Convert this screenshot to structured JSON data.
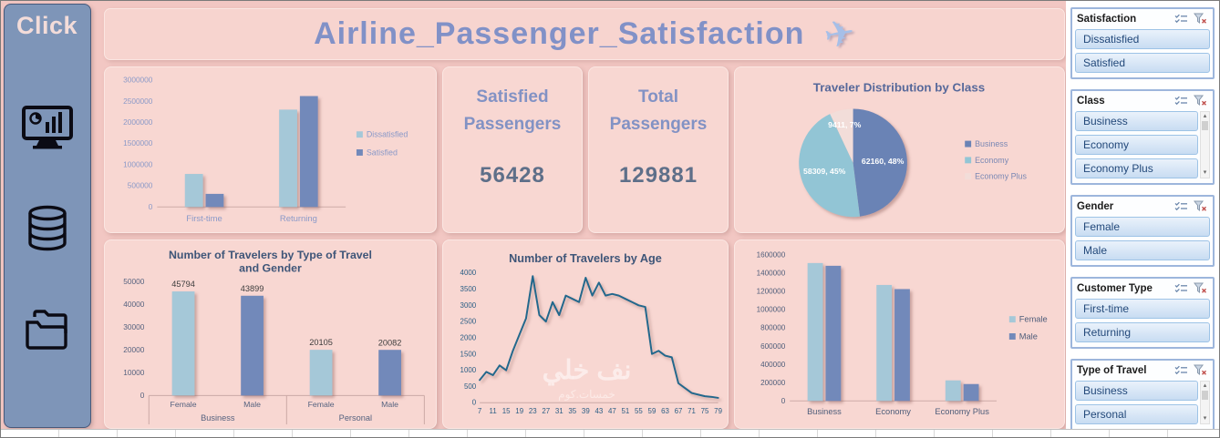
{
  "sidebar": {
    "title": "Click",
    "buttons": [
      {
        "label": "dashboard",
        "icon": "monitor-chart-icon"
      },
      {
        "label": "data",
        "icon": "database-icon"
      },
      {
        "label": "files",
        "icon": "folders-icon"
      }
    ]
  },
  "header": {
    "title": "Airline_Passenger_Satisfaction",
    "icon": "airplane-icon"
  },
  "kpis": [
    {
      "title": "Satisfied Passengers",
      "value": "56428"
    },
    {
      "title": "Total Passengers",
      "value": "129881"
    }
  ],
  "watermark": {
    "line1": "نف خلي",
    "line2": "خمسات.كوم"
  },
  "slicers": [
    {
      "title": "Satisfaction",
      "items": [
        "Dissatisfied",
        "Satisfied"
      ],
      "scrollbar": false
    },
    {
      "title": "Class",
      "items": [
        "Business",
        "Economy",
        "Economy Plus"
      ],
      "scrollbar": true
    },
    {
      "title": "Gender",
      "items": [
        "Female",
        "Male"
      ],
      "scrollbar": false
    },
    {
      "title": "Customer Type",
      "items": [
        "First-time",
        "Returning"
      ],
      "scrollbar": false
    },
    {
      "title": "Type of Travel",
      "items": [
        "Business",
        "Personal"
      ],
      "scrollbar": true
    }
  ],
  "colors": {
    "background": "#F2C7C3",
    "card": "#F8D7D2",
    "teal_series": "#A5C8D8",
    "blue_series": "#7289BA",
    "pie_business": "#6A83B5",
    "pie_economy": "#92C5D5",
    "pie_economy_plus": "#F2DDD9",
    "line": "#20688C",
    "dashboard_title": "#8191C7",
    "chart_title": "#3E5578"
  },
  "chart_data": [
    {
      "id": "satisfaction_by_customer_type",
      "type": "bar",
      "title": "",
      "categories": [
        "First-time",
        "Returning"
      ],
      "series": [
        {
          "name": "Dissatisfied",
          "color": "#A5C8D8",
          "values": [
            780000,
            2300000
          ]
        },
        {
          "name": "Satisfied",
          "color": "#7289BA",
          "values": [
            310000,
            2620000
          ]
        }
      ],
      "ylim": [
        0,
        3000000
      ],
      "yticks": [
        0,
        500000,
        1000000,
        1500000,
        2000000,
        2500000,
        3000000
      ],
      "legend_position": "right",
      "grid": false
    },
    {
      "id": "traveler_distribution_by_class",
      "type": "pie",
      "title": "Traveler Distribution by Class",
      "slices": [
        {
          "label": "Business",
          "value": 62160,
          "percent": 48,
          "data_label": "62160, 48%",
          "color": "#6A83B5"
        },
        {
          "label": "Economy",
          "value": 58309,
          "percent": 45,
          "data_label": "58309, 45%",
          "color": "#92C5D5"
        },
        {
          "label": "Economy Plus",
          "value": 9411,
          "percent": 7,
          "data_label": "9411, 7%",
          "color": "#F2DDD9"
        }
      ],
      "legend_position": "right"
    },
    {
      "id": "travelers_by_type_of_travel_and_gender",
      "type": "bar",
      "title": "Number of Travelers by Type of Travel and Gender",
      "groups": [
        {
          "label": "Business",
          "bars": [
            {
              "label": "Female",
              "value": 45794,
              "color": "#A5C8D8"
            },
            {
              "label": "Male",
              "value": 43899,
              "color": "#7289BA"
            }
          ]
        },
        {
          "label": "Personal",
          "bars": [
            {
              "label": "Female",
              "value": 20105,
              "color": "#A5C8D8"
            },
            {
              "label": "Male",
              "value": 20082,
              "color": "#7289BA"
            }
          ]
        }
      ],
      "ylim": [
        0,
        50000
      ],
      "yticks": [
        0,
        10000,
        20000,
        30000,
        40000,
        50000
      ],
      "data_labels": true,
      "grid": false
    },
    {
      "id": "travelers_by_age",
      "type": "line",
      "title": "Number of Travelers by Age",
      "color": "#20688C",
      "x": [
        7,
        9,
        11,
        13,
        15,
        17,
        19,
        21,
        23,
        25,
        27,
        29,
        31,
        33,
        35,
        37,
        39,
        41,
        43,
        45,
        47,
        49,
        51,
        53,
        55,
        57,
        59,
        61,
        63,
        65,
        67,
        69,
        71,
        73,
        75,
        77,
        79
      ],
      "values": [
        700,
        950,
        850,
        1150,
        1000,
        1600,
        2100,
        2600,
        3900,
        2700,
        2500,
        3100,
        2700,
        3300,
        3200,
        3100,
        3850,
        3300,
        3700,
        3300,
        3350,
        3300,
        3200,
        3100,
        3000,
        2950,
        1500,
        1600,
        1450,
        1400,
        600,
        450,
        300,
        250,
        200,
        180,
        150
      ],
      "xticks": [
        7,
        11,
        15,
        19,
        23,
        27,
        31,
        35,
        39,
        43,
        47,
        51,
        55,
        59,
        63,
        67,
        71,
        75,
        79
      ],
      "ylim": [
        0,
        4000
      ],
      "yticks": [
        0,
        500,
        1000,
        1500,
        2000,
        2500,
        3000,
        3500,
        4000
      ],
      "grid": false
    },
    {
      "id": "travelers_by_class_and_gender",
      "type": "bar",
      "title": "",
      "categories": [
        "Business",
        "Economy",
        "Economy Plus"
      ],
      "series": [
        {
          "name": "Female",
          "color": "#A5C8D8",
          "values": [
            1510000,
            1270000,
            225000
          ]
        },
        {
          "name": "Male",
          "color": "#7289BA",
          "values": [
            1480000,
            1225000,
            185000
          ]
        }
      ],
      "ylim": [
        0,
        1600000
      ],
      "yticks": [
        0,
        200000,
        400000,
        600000,
        800000,
        1000000,
        1200000,
        1400000,
        1600000
      ],
      "legend_position": "right",
      "grid": false
    }
  ]
}
